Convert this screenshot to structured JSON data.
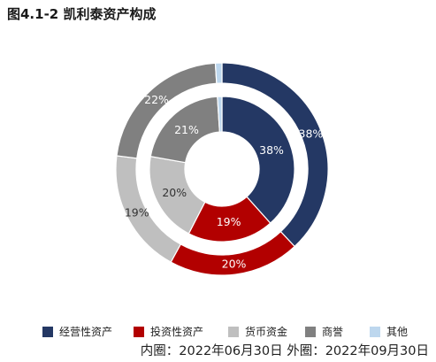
{
  "chart_data": {
    "type": "pie",
    "subtype": "nested-donut",
    "title": "图4.1-2 凯利泰资产构成",
    "note": "内圈：2022年06月30日 外圈：2022年09月30日",
    "categories": [
      "经营性资产",
      "投资性资产",
      "货币资金",
      "商誉",
      "其他"
    ],
    "colors": [
      "#243864",
      "#b20000",
      "#bfbfbf",
      "#808080",
      "#bdd7ee"
    ],
    "series": [
      {
        "ring": "inner",
        "values": [
          38,
          19,
          20,
          21,
          1
        ],
        "labels": [
          "38%",
          "19%",
          "20%",
          "21%",
          ""
        ]
      },
      {
        "ring": "outer",
        "values": [
          38,
          20,
          19,
          22,
          1
        ],
        "labels": [
          "38%",
          "20%",
          "19%",
          "22%",
          ""
        ]
      }
    ],
    "legend_position": "bottom"
  }
}
